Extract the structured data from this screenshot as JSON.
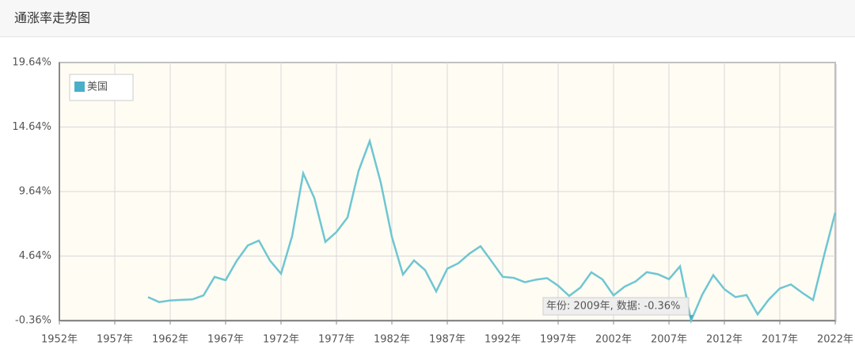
{
  "header": {
    "title": "通涨率走势图"
  },
  "chart_data": {
    "type": "line",
    "x": [
      1960,
      1961,
      1962,
      1963,
      1964,
      1965,
      1966,
      1967,
      1968,
      1969,
      1970,
      1971,
      1972,
      1973,
      1974,
      1975,
      1976,
      1977,
      1978,
      1979,
      1980,
      1981,
      1982,
      1983,
      1984,
      1985,
      1986,
      1987,
      1988,
      1989,
      1990,
      1991,
      1992,
      1993,
      1994,
      1995,
      1996,
      1997,
      1998,
      1999,
      2000,
      2001,
      2002,
      2003,
      2004,
      2005,
      2006,
      2007,
      2008,
      2009,
      2010,
      2011,
      2012,
      2013,
      2014,
      2015,
      2016,
      2017,
      2018,
      2019,
      2020,
      2021,
      2022
    ],
    "series": [
      {
        "name": "美国",
        "color": "#4aafc8",
        "line_color": "#6ec6d2",
        "values": [
          1.46,
          1.07,
          1.2,
          1.24,
          1.28,
          1.59,
          3.02,
          2.77,
          4.27,
          5.46,
          5.84,
          4.29,
          3.27,
          6.18,
          11.05,
          9.14,
          5.74,
          6.5,
          7.63,
          11.25,
          13.55,
          10.33,
          6.13,
          3.21,
          4.3,
          3.55,
          1.9,
          3.66,
          4.08,
          4.83,
          5.4,
          4.23,
          3.03,
          2.95,
          2.61,
          2.81,
          2.93,
          2.34,
          1.55,
          2.19,
          3.38,
          2.83,
          1.59,
          2.27,
          2.68,
          3.39,
          3.23,
          2.85,
          3.84,
          -0.36,
          1.64,
          3.16,
          2.07,
          1.46,
          1.62,
          0.12,
          1.26,
          2.13,
          2.44,
          1.81,
          1.23,
          4.7,
          8.0
        ]
      }
    ],
    "xlim": [
      1952,
      2022
    ],
    "xticks": [
      {
        "value": 1952,
        "label": "1952年"
      },
      {
        "value": 1957,
        "label": "1957年"
      },
      {
        "value": 1962,
        "label": "1962年"
      },
      {
        "value": 1967,
        "label": "1967年"
      },
      {
        "value": 1972,
        "label": "1972年"
      },
      {
        "value": 1977,
        "label": "1977年"
      },
      {
        "value": 1982,
        "label": "1982年"
      },
      {
        "value": 1987,
        "label": "1987年"
      },
      {
        "value": 1992,
        "label": "1992年"
      },
      {
        "value": 1997,
        "label": "1997年"
      },
      {
        "value": 2002,
        "label": "2002年"
      },
      {
        "value": 2007,
        "label": "2007年"
      },
      {
        "value": 2012,
        "label": "2012年"
      },
      {
        "value": 2017,
        "label": "2017年"
      },
      {
        "value": 2022,
        "label": "2022年"
      }
    ],
    "ylim": [
      -0.36,
      19.64
    ],
    "yticks": [
      {
        "value": -0.36,
        "label": "-0.36%"
      },
      {
        "value": 4.64,
        "label": "4.64%"
      },
      {
        "value": 9.64,
        "label": "9.64%"
      },
      {
        "value": 14.64,
        "label": "14.64%"
      },
      {
        "value": 19.64,
        "label": "19.64%"
      }
    ],
    "grid": true,
    "legend": "top-left",
    "tooltip": {
      "text": "年份: 2009年, 数据: -0.36%",
      "index": 49
    }
  }
}
